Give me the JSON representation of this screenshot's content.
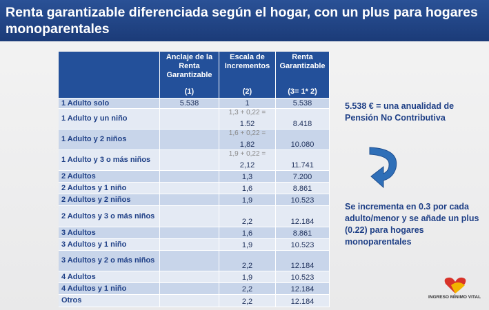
{
  "header": {
    "title": "Renta garantizable diferenciada según el hogar, con un plus para hogares monoparentales"
  },
  "table": {
    "columns": [
      {
        "text": "Anclaje de la Renta Garantizable",
        "note": "(1)"
      },
      {
        "text": "Escala de Incrementos",
        "note": "(2)"
      },
      {
        "text": "Renta Garantizable",
        "note": "(3= 1* 2)"
      }
    ],
    "rows": [
      {
        "label": "1 Adulto solo",
        "anchor": "5.538",
        "scale": "1",
        "rent": "5.538"
      },
      {
        "label": "1 Adulto y un niño",
        "formula": "1,3 + 0,22 =",
        "scale": "1.52",
        "rent": "8.418"
      },
      {
        "label": "1 Adulto y 2 niños",
        "formula": "1,6 + 0,22 =",
        "scale": "1,82",
        "rent": "10.080"
      },
      {
        "label": "1 Adulto y 3 o más niños",
        "formula": "1,9 + 0,22 =",
        "scale": "2,12",
        "rent": "11.741"
      },
      {
        "label": "2 Adultos",
        "scale": "1,3",
        "rent": "7.200"
      },
      {
        "label": "2 Adultos y 1 niño",
        "scale": "1,6",
        "rent": "8.861"
      },
      {
        "label": "2 Adultos y 2 niños",
        "scale": "1,9",
        "rent": "10.523"
      },
      {
        "label": "2 Adultos y 3 o más niños",
        "scale": "2,2",
        "rent": "12.184"
      },
      {
        "label": "3 Adultos",
        "scale": "1,6",
        "rent": "8.861"
      },
      {
        "label": "3 Adultos y 1 niño",
        "scale": "1,9",
        "rent": "10.523"
      },
      {
        "label": "3 Adultos y 2  o más niños",
        "scale": "2,2",
        "rent": "12.184"
      },
      {
        "label": "4 Adultos",
        "scale": "1,9",
        "rent": "10.523"
      },
      {
        "label": "4 Adultos y 1 niño",
        "scale": "2,2",
        "rent": "12.184"
      },
      {
        "label": "Otros",
        "scale": "2,2",
        "rent": "12.184"
      }
    ]
  },
  "notes": [
    "5.538 € = una anualidad de Pensión No Contributiva",
    "Se incrementa en 0.3 por cada adulto/menor y se añade un plus (0.22) para hogares monoparentales"
  ],
  "footer": {
    "logo": "INGRESO MÍNIMO VITAL"
  }
}
